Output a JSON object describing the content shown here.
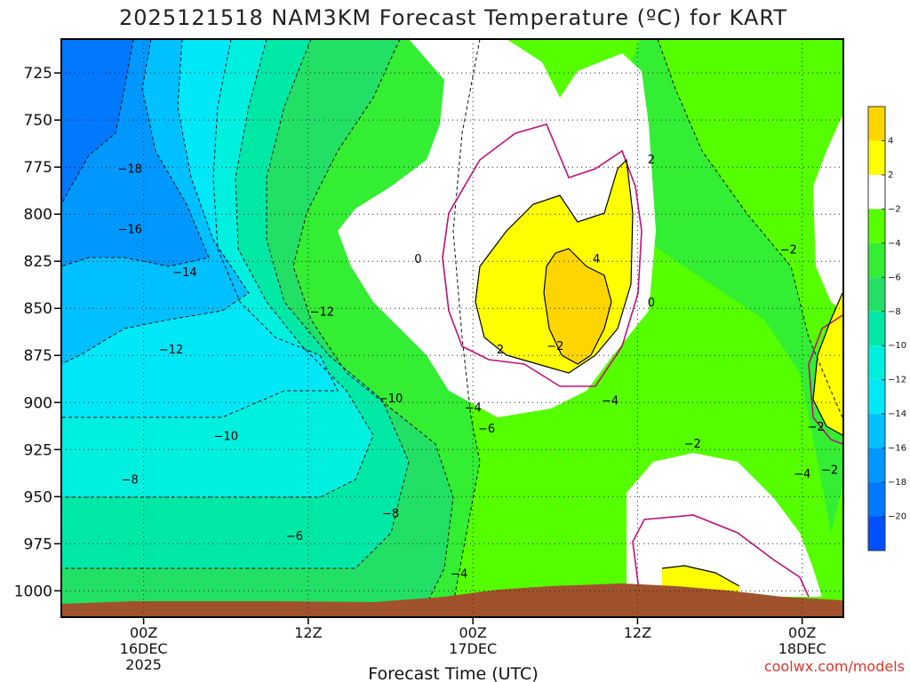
{
  "chart_data": {
    "type": "heatmap",
    "title": "2025121518 NAM3KM Forecast Temperature (ºC) for KART",
    "xlabel": "Forecast Time (UTC)",
    "credit": "coolwx.com/models",
    "y_axis": {
      "quantity": "pressure (hPa)",
      "inverted": true,
      "ylim": [
        1014,
        707
      ],
      "ticks": [
        725,
        750,
        775,
        800,
        825,
        850,
        875,
        900,
        925,
        950,
        975,
        1000
      ]
    },
    "x_axis": {
      "xlim": [
        "2025-12-15T18Z",
        "2025-12-18T03Z"
      ],
      "ticks": [
        {
          "time": "2025-12-16T00Z",
          "lines": [
            "00Z",
            "16DEC",
            "2025"
          ]
        },
        {
          "time": "2025-12-16T12Z",
          "lines": [
            "12Z"
          ]
        },
        {
          "time": "2025-12-17T00Z",
          "lines": [
            "00Z",
            "17DEC"
          ]
        },
        {
          "time": "2025-12-17T12Z",
          "lines": [
            "12Z"
          ]
        },
        {
          "time": "2025-12-18T00Z",
          "lines": [
            "00Z",
            "18DEC"
          ]
        }
      ]
    },
    "grid": true,
    "legend": {
      "placement": "right",
      "bins": [
        {
          "range": "4 to 6",
          "color": "#ffd500"
        },
        {
          "range": "2 to 4",
          "color": "#ffff00"
        },
        {
          "range": "-2 to 2",
          "color": "#ffffff"
        },
        {
          "range": "-4 to -2",
          "color": "#55ff00"
        },
        {
          "range": "-6 to -4",
          "color": "#33ee33"
        },
        {
          "range": "-8 to -6",
          "color": "#22e065"
        },
        {
          "range": "-10 to -8",
          "color": "#00e8a6"
        },
        {
          "range": "-12 to -10",
          "color": "#00f0e0"
        },
        {
          "range": "-14 to -12",
          "color": "#00e8f8"
        },
        {
          "range": "-16 to -14",
          "color": "#00c0ff"
        },
        {
          "range": "-18 to -16",
          "color": "#0098ff"
        },
        {
          "range": "-20 to -18",
          "color": "#0078ff"
        },
        {
          "range": "-22 to -20",
          "color": "#0050ff"
        }
      ],
      "labels": [
        "4",
        "2",
        "-2",
        "-4",
        "-6",
        "-8",
        "-10",
        "-12",
        "-14",
        "-16",
        "-18",
        "-20"
      ]
    },
    "colors": {
      "ground": "#a0522d",
      "zero_contour": "#c0107a",
      "cold_color_scale": [
        "#0050ff",
        "#0078ff",
        "#0098ff",
        "#00c0ff",
        "#00e8f8",
        "#00f0e0",
        "#00e8a6",
        "#22e065",
        "#33ee33",
        "#55ff00"
      ],
      "warm_color_scale": [
        "#ffffff",
        "#ffff00",
        "#ffd500"
      ]
    },
    "contour_labels": [
      {
        "text": "-18",
        "time": "2025-12-15T23Z",
        "pressure": 777
      },
      {
        "text": "-16",
        "time": "2025-12-15T23Z",
        "pressure": 809
      },
      {
        "text": "-14",
        "time": "2025-12-16T03Z",
        "pressure": 832
      },
      {
        "text": "-12",
        "time": "2025-12-16T13Z",
        "pressure": 853
      },
      {
        "text": "-12",
        "time": "2025-12-16T02Z",
        "pressure": 873
      },
      {
        "text": "-10",
        "time": "2025-12-16T18Z",
        "pressure": 899
      },
      {
        "text": "-10",
        "time": "2025-12-16T06Z",
        "pressure": 919
      },
      {
        "text": "-8",
        "time": "2025-12-15T23Z",
        "pressure": 942
      },
      {
        "text": "-8",
        "time": "2025-12-16T18Z",
        "pressure": 960
      },
      {
        "text": "-6",
        "time": "2025-12-16T11Z",
        "pressure": 972
      },
      {
        "text": "-4",
        "time": "2025-12-16T23Z",
        "pressure": 992
      },
      {
        "text": "-4",
        "time": "2025-12-17T00Z",
        "pressure": 904
      },
      {
        "text": "-6",
        "time": "2025-12-17T01Z",
        "pressure": 915
      },
      {
        "text": "0",
        "time": "2025-12-16T20Z",
        "pressure": 825
      },
      {
        "text": "2",
        "time": "2025-12-17T02Z",
        "pressure": 873
      },
      {
        "text": "-2",
        "time": "2025-12-17T06Z",
        "pressure": 871
      },
      {
        "text": "4",
        "time": "2025-12-17T09Z",
        "pressure": 825
      },
      {
        "text": "0",
        "time": "2025-12-17T13Z",
        "pressure": 848
      },
      {
        "text": "2",
        "time": "2025-12-17T13Z",
        "pressure": 772
      },
      {
        "text": "-4",
        "time": "2025-12-17T10Z",
        "pressure": 900
      },
      {
        "text": "-2",
        "time": "2025-12-17T16Z",
        "pressure": 923
      },
      {
        "text": "-2",
        "time": "2025-12-17T23Z",
        "pressure": 820
      },
      {
        "text": "-2",
        "time": "2025-12-18T01Z",
        "pressure": 914
      },
      {
        "text": "-4",
        "time": "2025-12-18T00Z",
        "pressure": 939
      },
      {
        "text": "-2",
        "time": "2025-12-18T02Z",
        "pressure": 937
      }
    ]
  }
}
